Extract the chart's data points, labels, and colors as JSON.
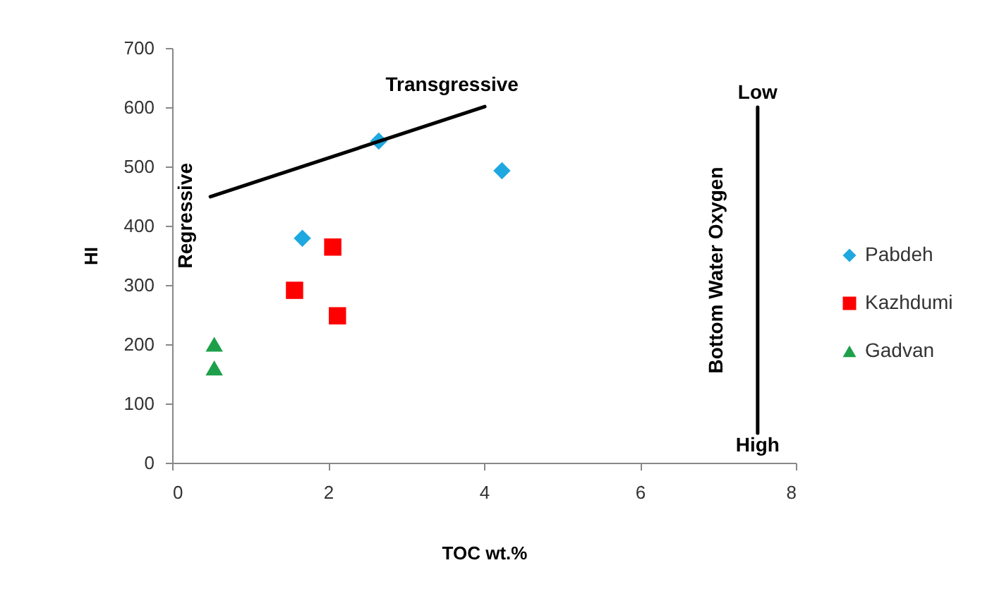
{
  "chart_data": {
    "type": "scatter",
    "xlabel": "TOC wt.%",
    "ylabel": "HI",
    "xlim": [
      0,
      8
    ],
    "xticks": [
      0,
      2,
      4,
      6,
      8
    ],
    "ylim": [
      0,
      700
    ],
    "yticks": [
      0,
      100,
      200,
      300,
      400,
      500,
      600,
      700
    ],
    "grid": false,
    "legend": "right",
    "series": [
      {
        "name": "Pabdeh",
        "color": "#1fa8e0",
        "marker": "diamond",
        "x": [
          1.67,
          2.65,
          4.23
        ],
        "values": [
          379,
          543,
          493
        ]
      },
      {
        "name": "Kazhdumi",
        "color": "#ff0000",
        "marker": "square",
        "x": [
          2.06,
          1.57,
          2.12
        ],
        "values": [
          364,
          291,
          248
        ]
      },
      {
        "name": "Gadvan",
        "color": "#1ea04a",
        "marker": "triangle",
        "x": [
          0.54,
          0.54
        ],
        "values": [
          200,
          160
        ]
      },
      {
        "type": "line",
        "color": "#000000",
        "marker": "none",
        "x": [
          0.49,
          4.01
        ],
        "values": [
          449,
          601
        ]
      },
      {
        "type": "line",
        "color": "#000000",
        "marker": "none",
        "x": [
          7.51,
          7.51
        ],
        "values": [
          600,
          50
        ]
      }
    ],
    "annotations": [
      "Transgressive",
      "Regressive",
      "Low",
      "High",
      "Bottom Water Oxygen"
    ]
  }
}
